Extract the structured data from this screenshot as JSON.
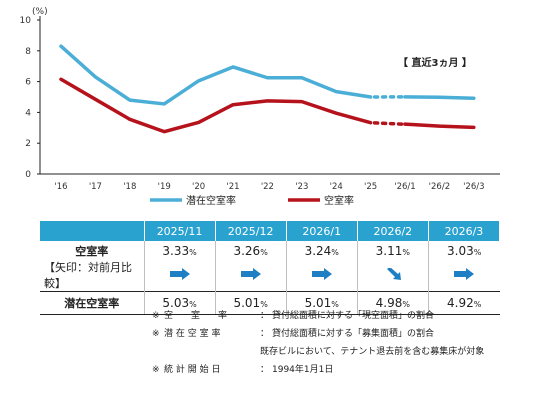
{
  "chart_data": {
    "type": "line",
    "y_unit_label": "(%)",
    "ylim": [
      0,
      10
    ],
    "yticks": [
      0,
      2,
      4,
      6,
      8,
      10
    ],
    "categories": [
      "'16",
      "'17",
      "'18",
      "'19",
      "'20",
      "'21",
      "'22",
      "'23",
      "'24",
      "'25",
      "'26/1",
      "'26/2",
      "'26/3"
    ],
    "annotation": "【 直近3ヵ月 】",
    "legend_position": "bottom",
    "series": [
      {
        "name": "潜在空室率",
        "color": "#4aaed6",
        "values": [
          8.3,
          6.3,
          4.8,
          4.55,
          6.05,
          6.95,
          6.25,
          6.25,
          5.35,
          5.0,
          5.01,
          4.98,
          4.92
        ]
      },
      {
        "name": "空室率",
        "color": "#b5121b",
        "values": [
          6.15,
          4.85,
          3.55,
          2.75,
          3.35,
          4.5,
          4.75,
          4.7,
          3.95,
          3.33,
          3.24,
          3.11,
          3.03
        ]
      }
    ]
  },
  "table": {
    "months": [
      "2025/11",
      "2025/12",
      "2026/1",
      "2026/2",
      "2026/3"
    ],
    "vacancy_label": "空室率",
    "arrow_label": "【矢印：対前月比較】",
    "vacancy": [
      {
        "value": "3.33",
        "unit": "%"
      },
      {
        "value": "3.26",
        "unit": "%"
      },
      {
        "value": "3.24",
        "unit": "%"
      },
      {
        "value": "3.11",
        "unit": "%"
      },
      {
        "value": "3.03",
        "unit": "%"
      }
    ],
    "arrows": [
      "right",
      "right",
      "right",
      "down-right",
      "right"
    ],
    "arrow_color": "#1f7fc4",
    "latent_label": "潜在空室率",
    "latent": [
      {
        "value": "5.03",
        "unit": "%"
      },
      {
        "value": "5.01",
        "unit": "%"
      },
      {
        "value": "5.01",
        "unit": "%"
      },
      {
        "value": "4.98",
        "unit": "%"
      },
      {
        "value": "4.92",
        "unit": "%"
      }
    ]
  },
  "notes": [
    {
      "mark": "※",
      "label": "空　　室　　率",
      "sep": "：",
      "text": "貸付総面積に対する「現空面積」の割合"
    },
    {
      "mark": "※",
      "label": "潜 在 空 室 率",
      "sep": "：",
      "text": "貸付総面積に対する「募集面積」の割合"
    },
    {
      "continuation": "既存ビルにおいて、テナント退去前を含む募集床が対象"
    },
    {
      "mark": "※",
      "label": "統 計 開 始 日",
      "sep": "：",
      "text": "1994年1月1日"
    }
  ]
}
